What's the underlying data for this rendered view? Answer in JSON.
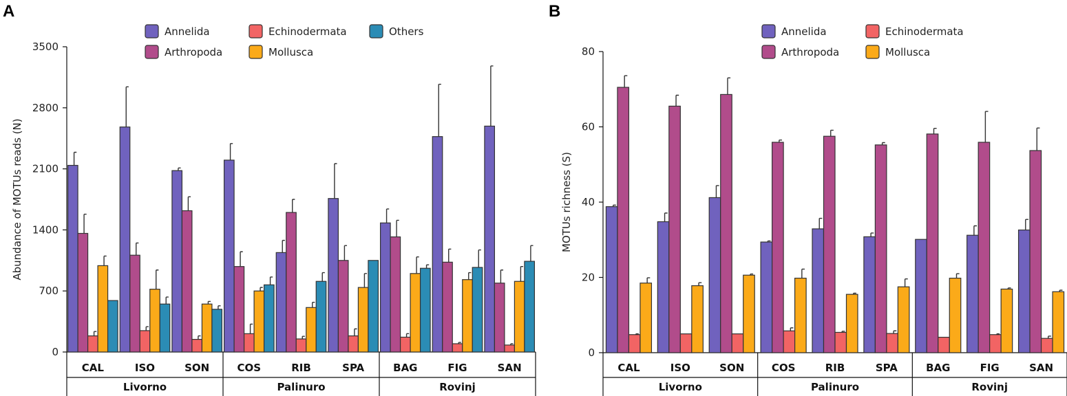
{
  "chart_data": [
    {
      "panel": "A",
      "type": "bar",
      "ylabel": "Abundance of MOTUs reads (N)",
      "ylim": [
        0,
        3500
      ],
      "yticks": [
        0,
        700,
        1400,
        2100,
        2800,
        3500
      ],
      "categories": [
        "CAL",
        "ISO",
        "SON",
        "COS",
        "RIB",
        "SPA",
        "BAG",
        "FIG",
        "SAN"
      ],
      "groups": [
        {
          "name": "Livorno",
          "categories": [
            "CAL",
            "ISO",
            "SON"
          ]
        },
        {
          "name": "Palinuro",
          "categories": [
            "COS",
            "RIB",
            "SPA"
          ]
        },
        {
          "name": "Rovinj",
          "categories": [
            "BAG",
            "FIG",
            "SAN"
          ]
        }
      ],
      "legend": {
        "position": "top-center",
        "order": [
          "Annelida",
          "Echinodermata",
          "Others",
          "Arthropoda",
          "Mollusca"
        ]
      },
      "series": [
        {
          "name": "Annelida",
          "color": "#7062BE",
          "values": [
            2140,
            2580,
            2080,
            2200,
            1140,
            1760,
            1480,
            2470,
            2590
          ],
          "errors": [
            150,
            460,
            30,
            190,
            140,
            400,
            160,
            600,
            690
          ]
        },
        {
          "name": "Arthropoda",
          "color": "#B14C8B",
          "values": [
            1360,
            1110,
            1620,
            980,
            1600,
            1050,
            1320,
            1030,
            790
          ],
          "errors": [
            220,
            140,
            160,
            170,
            150,
            170,
            190,
            150,
            150
          ]
        },
        {
          "name": "Echinodermata",
          "color": "#F26464",
          "values": [
            185,
            245,
            145,
            210,
            150,
            185,
            170,
            95,
            80
          ],
          "errors": [
            50,
            45,
            40,
            110,
            30,
            80,
            40,
            15,
            15
          ]
        },
        {
          "name": "Mollusca",
          "color": "#FBAA19",
          "values": [
            990,
            720,
            550,
            700,
            510,
            740,
            900,
            830,
            810
          ],
          "errors": [
            110,
            220,
            30,
            40,
            60,
            160,
            190,
            80,
            170
          ]
        },
        {
          "name": "Others",
          "color": "#2B8CB5",
          "values": [
            590,
            550,
            490,
            770,
            810,
            1050,
            960,
            970,
            1040
          ],
          "errors": [
            0,
            80,
            40,
            90,
            100,
            0,
            40,
            200,
            180
          ]
        }
      ]
    },
    {
      "panel": "B",
      "type": "bar",
      "ylabel": "MOTUs richness (S)",
      "ylim": [
        0,
        80
      ],
      "yticks": [
        0,
        20,
        40,
        60,
        80
      ],
      "categories": [
        "CAL",
        "ISO",
        "SON",
        "COS",
        "RIB",
        "SPA",
        "BAG",
        "FIG",
        "SAN"
      ],
      "groups": [
        {
          "name": "Livorno",
          "categories": [
            "CAL",
            "ISO",
            "SON"
          ]
        },
        {
          "name": "Palinuro",
          "categories": [
            "COS",
            "RIB",
            "SPA"
          ]
        },
        {
          "name": "Rovinj",
          "categories": [
            "BAG",
            "FIG",
            "SAN"
          ]
        }
      ],
      "legend": {
        "position": "top-center",
        "order": [
          "Annelida",
          "Echinodermata",
          "Arthropoda",
          "Mollusca"
        ]
      },
      "series": [
        {
          "name": "Annelida",
          "color": "#7062BE",
          "values": [
            38.8,
            34.8,
            41.2,
            29.4,
            32.9,
            30.8,
            30.1,
            31.2,
            32.6
          ],
          "errors": [
            0.4,
            2.3,
            3.2,
            0.3,
            2.8,
            1.0,
            0,
            2.5,
            2.8
          ]
        },
        {
          "name": "Arthropoda",
          "color": "#B14C8B",
          "values": [
            70.5,
            65.5,
            68.6,
            55.9,
            57.5,
            55.2,
            58.1,
            55.9,
            53.7
          ],
          "errors": [
            3.1,
            2.9,
            4.4,
            0.6,
            1.6,
            0.6,
            1.5,
            8.2,
            6.0
          ]
        },
        {
          "name": "Echinodermata",
          "color": "#F26464",
          "values": [
            4.8,
            5.0,
            5.0,
            5.8,
            5.4,
            5.1,
            4.1,
            4.8,
            3.8
          ],
          "errors": [
            0.2,
            0,
            0,
            0.8,
            0.3,
            0.7,
            0,
            0.2,
            0.6
          ]
        },
        {
          "name": "Mollusca",
          "color": "#FBAA19",
          "values": [
            18.5,
            17.8,
            20.6,
            19.8,
            15.5,
            17.5,
            19.8,
            16.9,
            16.2
          ],
          "errors": [
            1.4,
            0.8,
            0.3,
            2.4,
            0.3,
            2.1,
            1.2,
            0.3,
            0.4
          ]
        }
      ]
    }
  ]
}
